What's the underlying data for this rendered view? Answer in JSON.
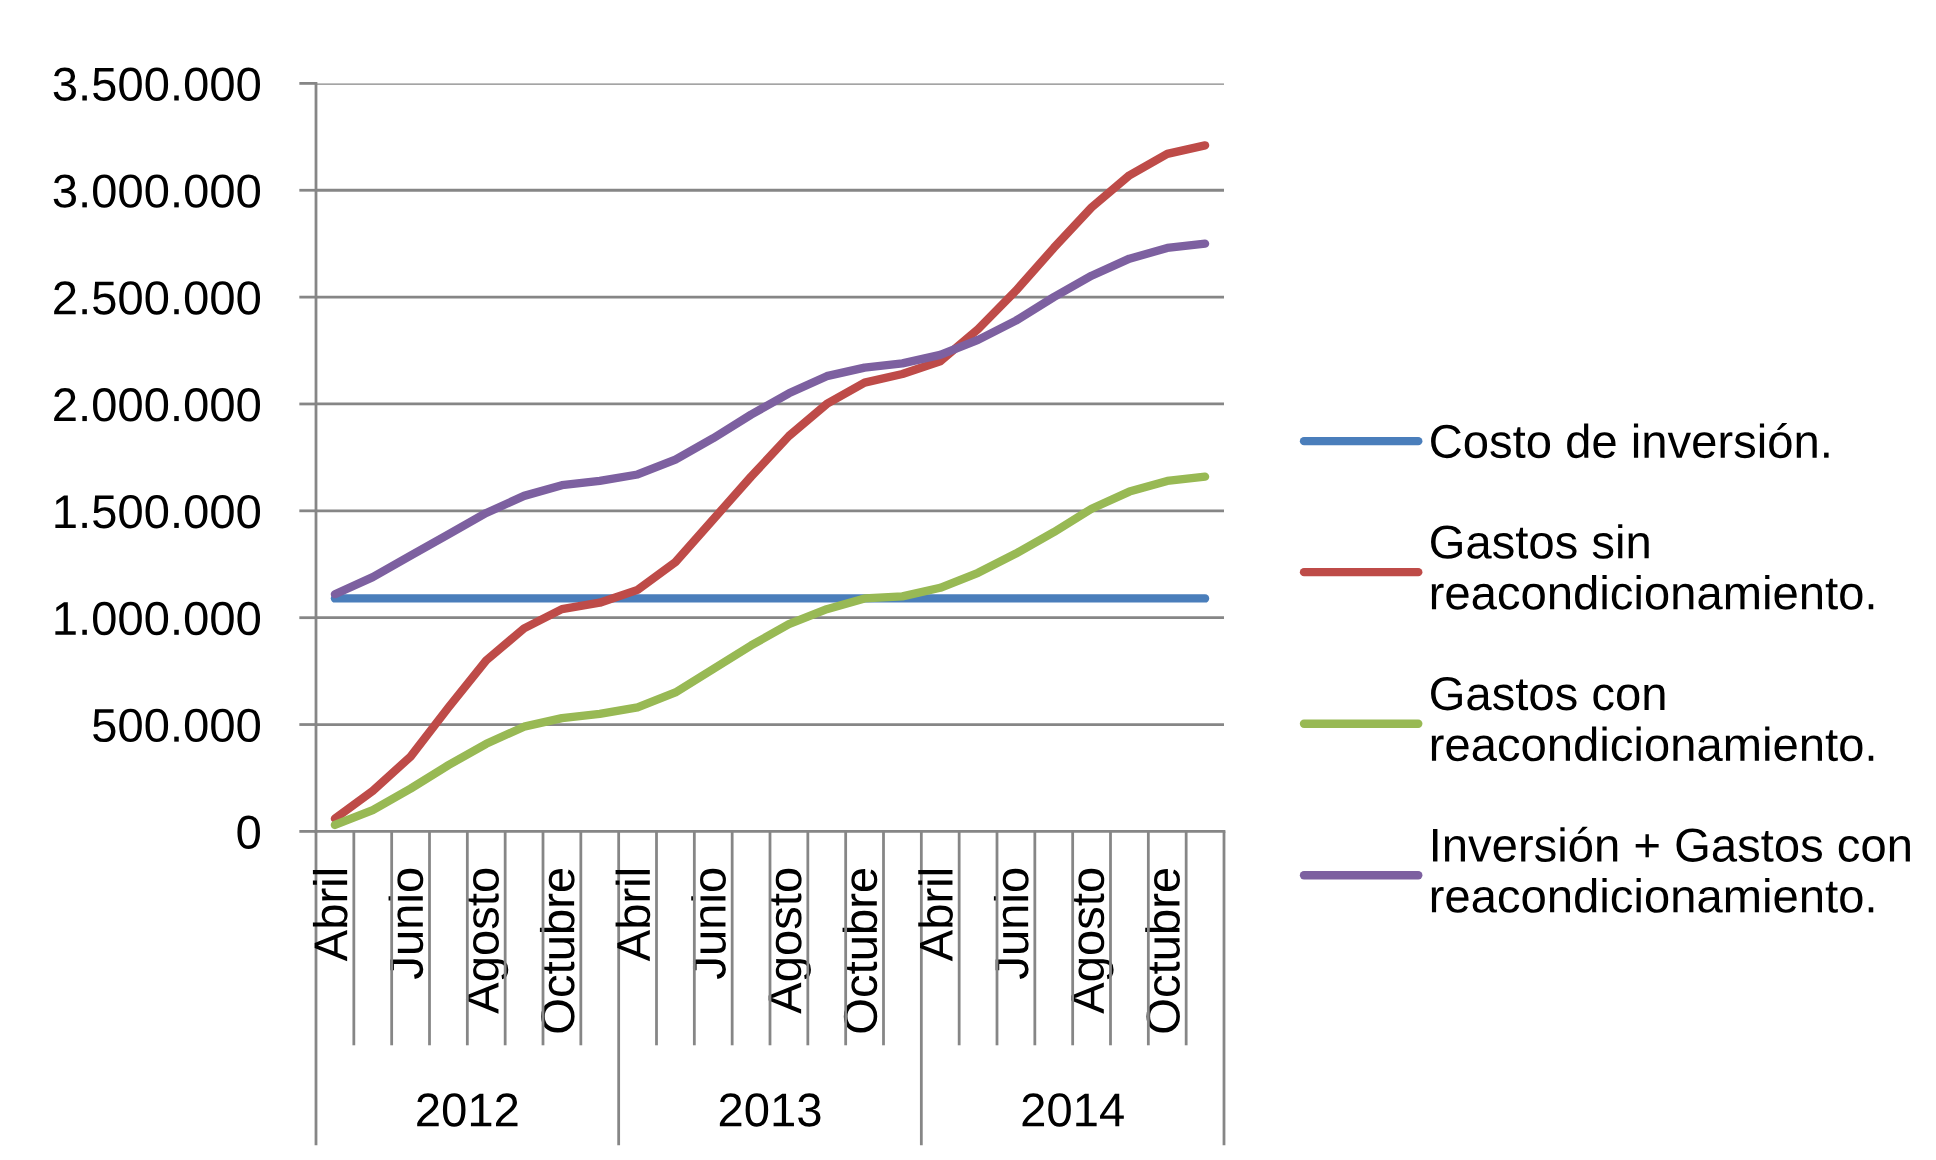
{
  "chart_data": {
    "type": "line",
    "categories": [
      "Abril",
      null,
      "Junio",
      null,
      "Agosto",
      null,
      "Octubre",
      null,
      "Abril",
      null,
      "Junio",
      null,
      "Agosto",
      null,
      "Octubre",
      null,
      "Abril",
      null,
      "Junio",
      null,
      "Agosto",
      null,
      "Octubre",
      null
    ],
    "series": [
      {
        "name": "Costo de inversión.",
        "color": "#4a7ebb",
        "values": [
          1090000,
          1090000,
          1090000,
          1090000,
          1090000,
          1090000,
          1090000,
          1090000,
          1090000,
          1090000,
          1090000,
          1090000,
          1090000,
          1090000,
          1090000,
          1090000,
          1090000,
          1090000,
          1090000,
          1090000,
          1090000,
          1090000,
          1090000,
          1090000
        ]
      },
      {
        "name": "Gastos sin reacondicionamiento.",
        "color": "#be4b48",
        "values": [
          60000,
          190000,
          350000,
          580000,
          800000,
          950000,
          1040000,
          1070000,
          1130000,
          1260000,
          1460000,
          1660000,
          1850000,
          2000000,
          2100000,
          2140000,
          2200000,
          2350000,
          2530000,
          2730000,
          2920000,
          3070000,
          3170000,
          3210000
        ]
      },
      {
        "name": "Gastos con reacondicionamiento.",
        "color": "#98b954",
        "values": [
          30000,
          100000,
          200000,
          310000,
          410000,
          490000,
          530000,
          550000,
          580000,
          650000,
          760000,
          870000,
          970000,
          1040000,
          1090000,
          1100000,
          1140000,
          1210000,
          1300000,
          1400000,
          1510000,
          1590000,
          1640000,
          1660000
        ]
      },
      {
        "name": "Inversión + Gastos con reacondicionamiento.",
        "color": "#7d60a0",
        "values": [
          1110000,
          1190000,
          1290000,
          1390000,
          1490000,
          1570000,
          1620000,
          1640000,
          1670000,
          1740000,
          1840000,
          1950000,
          2050000,
          2130000,
          2170000,
          2190000,
          2230000,
          2300000,
          2390000,
          2500000,
          2600000,
          2680000,
          2730000,
          2750000
        ]
      }
    ],
    "ylim": [
      0,
      3500000
    ],
    "yticks": [
      0,
      {
        "value": 500000,
        "label": "500.000"
      },
      {
        "value": 1000000,
        "label": "1.000.000"
      },
      {
        "value": 1500000,
        "label": "1.500.000"
      },
      {
        "value": 2000000,
        "label": "2.000.000"
      },
      {
        "value": 2500000,
        "label": "2.500.000"
      },
      {
        "value": 3000000,
        "label": "3.000.000"
      },
      {
        "value": 3500000,
        "label": "3.500.000"
      }
    ],
    "grid": "y",
    "legend": "right",
    "marker": "none",
    "line_style": "solid",
    "annotations": [
      "2012",
      "2013",
      "2014"
    ]
  }
}
